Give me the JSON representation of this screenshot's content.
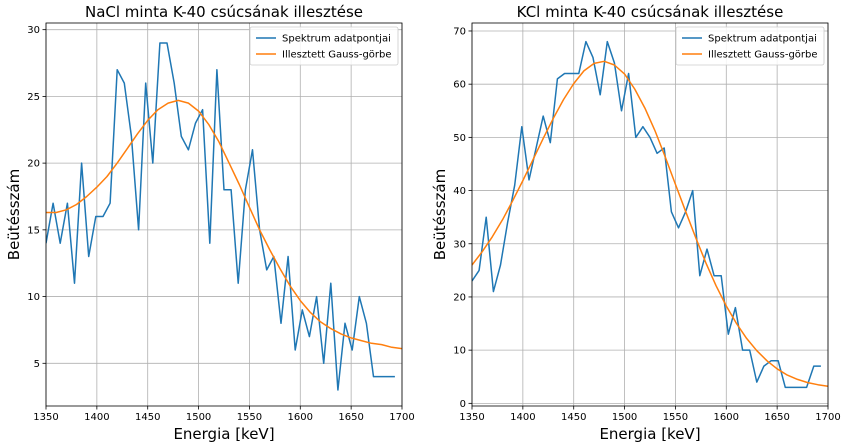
{
  "colors": {
    "spectrum": "#1f77b4",
    "fit": "#ff7f0e",
    "grid": "#b0b0b0"
  },
  "chart_data": [
    {
      "type": "line",
      "title": "NaCl minta K-40 csúcsának illesztése",
      "xlabel": "Energia [keV]",
      "ylabel": "Beütésszám",
      "xlim": [
        1350,
        1700
      ],
      "ylim": [
        1.8,
        30.5
      ],
      "xticks": [
        1350,
        1400,
        1450,
        1500,
        1550,
        1600,
        1650,
        1700
      ],
      "yticks": [
        5,
        10,
        15,
        20,
        25,
        30
      ],
      "grid": true,
      "legend": "top-right",
      "series": [
        {
          "name": "Spektrum adatpontjai",
          "x": [
            1350,
            1357,
            1364,
            1371,
            1378,
            1385,
            1392,
            1399,
            1406,
            1413,
            1420,
            1427,
            1434,
            1441,
            1448,
            1455,
            1462,
            1469,
            1476,
            1483,
            1490,
            1497,
            1504,
            1511,
            1518,
            1525,
            1532,
            1539,
            1546,
            1553,
            1560,
            1567,
            1574,
            1581,
            1588,
            1595,
            1602,
            1609,
            1616,
            1623,
            1630,
            1637,
            1644,
            1651,
            1658,
            1665,
            1672,
            1679,
            1686,
            1693
          ],
          "values": [
            14,
            17,
            14,
            17,
            11,
            20,
            13,
            16,
            16,
            17,
            27,
            26,
            22,
            15,
            26,
            20,
            29,
            29,
            26,
            22,
            21,
            23,
            24,
            14,
            27,
            18,
            18,
            11,
            18,
            21,
            15,
            12,
            13,
            8,
            13,
            6,
            9,
            7,
            10,
            5,
            11,
            3,
            8,
            6,
            10,
            8,
            4,
            4,
            4,
            4
          ]
        },
        {
          "name": "Illesztett Gauss-görbe",
          "x": [
            1350,
            1360,
            1370,
            1380,
            1390,
            1400,
            1410,
            1420,
            1430,
            1440,
            1450,
            1460,
            1470,
            1480,
            1490,
            1500,
            1510,
            1520,
            1530,
            1540,
            1550,
            1560,
            1570,
            1580,
            1590,
            1600,
            1610,
            1620,
            1630,
            1640,
            1650,
            1660,
            1670,
            1680,
            1690,
            1700
          ],
          "values": [
            16.3,
            16.3,
            16.5,
            16.9,
            17.5,
            18.2,
            19.0,
            20.0,
            21.1,
            22.2,
            23.2,
            24.0,
            24.5,
            24.7,
            24.5,
            23.9,
            22.9,
            21.6,
            20.0,
            18.4,
            16.7,
            15.0,
            13.5,
            12.1,
            10.8,
            9.7,
            8.8,
            8.1,
            7.6,
            7.2,
            6.9,
            6.7,
            6.5,
            6.4,
            6.2,
            6.1
          ]
        }
      ]
    },
    {
      "type": "line",
      "title": "KCl minta K-40 csúcsának illesztése",
      "xlabel": "Energia [keV]",
      "ylabel": "Beütésszám",
      "xlim": [
        1350,
        1700
      ],
      "ylim": [
        -0.5,
        71.5
      ],
      "xticks": [
        1350,
        1400,
        1450,
        1500,
        1550,
        1600,
        1650,
        1700
      ],
      "yticks": [
        0,
        10,
        20,
        30,
        40,
        50,
        60,
        70
      ],
      "grid": true,
      "legend": "top-right",
      "series": [
        {
          "name": "Spektrum adatpontjai",
          "x": [
            1350,
            1357,
            1364,
            1371,
            1378,
            1385,
            1392,
            1399,
            1406,
            1413,
            1420,
            1427,
            1434,
            1441,
            1448,
            1455,
            1462,
            1469,
            1476,
            1483,
            1490,
            1497,
            1504,
            1511,
            1518,
            1525,
            1532,
            1539,
            1546,
            1553,
            1560,
            1567,
            1574,
            1581,
            1588,
            1595,
            1602,
            1609,
            1616,
            1623,
            1630,
            1637,
            1644,
            1651,
            1658,
            1665,
            1672,
            1679,
            1686,
            1693
          ],
          "values": [
            23,
            25,
            35,
            21,
            26,
            34,
            41,
            52,
            42,
            48,
            54,
            49,
            61,
            62,
            62,
            62,
            68,
            65,
            58,
            68,
            64,
            55,
            62,
            50,
            52,
            50,
            47,
            48,
            36,
            33,
            36,
            40,
            24,
            29,
            24,
            24,
            13,
            18,
            10,
            10,
            4,
            7,
            8,
            8,
            3,
            3,
            3,
            3,
            7,
            7
          ]
        },
        {
          "name": "Illesztett Gauss-görbe",
          "x": [
            1350,
            1360,
            1370,
            1380,
            1390,
            1400,
            1410,
            1420,
            1430,
            1440,
            1450,
            1460,
            1470,
            1480,
            1490,
            1500,
            1510,
            1520,
            1530,
            1540,
            1550,
            1560,
            1570,
            1580,
            1590,
            1600,
            1610,
            1620,
            1630,
            1640,
            1650,
            1660,
            1670,
            1680,
            1690,
            1700
          ],
          "values": [
            26.0,
            28.5,
            31.3,
            34.5,
            38.1,
            41.9,
            45.8,
            49.8,
            53.6,
            57.1,
            60.1,
            62.5,
            63.9,
            64.3,
            63.6,
            61.9,
            59.1,
            55.5,
            51.2,
            46.3,
            41.2,
            36.1,
            31.1,
            26.4,
            22.1,
            18.3,
            15.0,
            12.2,
            9.9,
            8.0,
            6.5,
            5.3,
            4.5,
            3.9,
            3.5,
            3.2
          ]
        }
      ]
    }
  ]
}
